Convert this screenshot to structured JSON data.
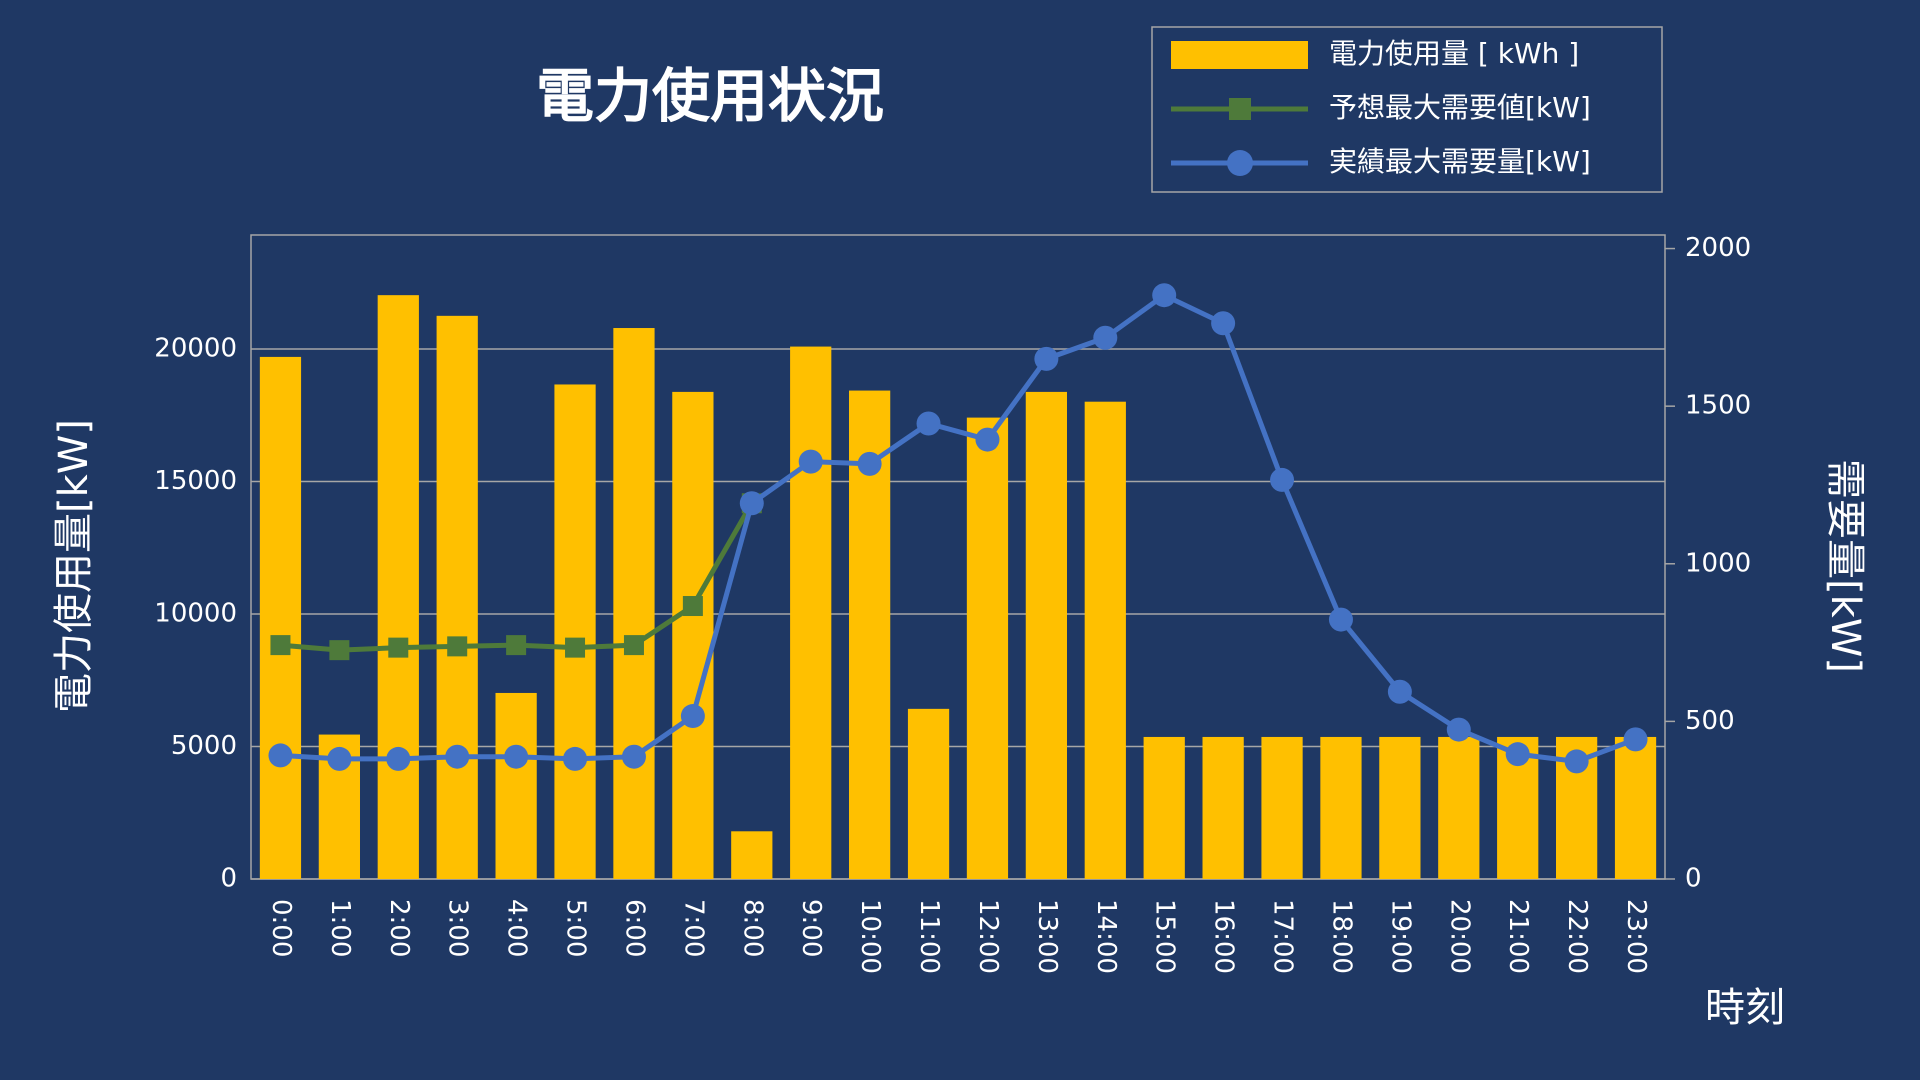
{
  "chart_data": {
    "type": "bar_line",
    "title": "電力使用状況",
    "y_label": "電力使用量[kW]",
    "y2_label": "需要量[kW]",
    "x_label": "時刻",
    "categories": [
      "0:00",
      "1:00",
      "2:00",
      "3:00",
      "4:00",
      "5:00",
      "6:00",
      "7:00",
      "8:00",
      "9:00",
      "10:00",
      "11:00",
      "12:00",
      "13:00",
      "14:00",
      "15:00",
      "16:00",
      "17:00",
      "18:00",
      "19:00",
      "20:00",
      "21:00",
      "22:00",
      "23:00"
    ],
    "series": [
      {
        "name": "電力使用量 [ kWh ]",
        "type": "bar",
        "color": "#ffc000",
        "values": [
          19700,
          5450,
          22030,
          21250,
          7020,
          18660,
          20790,
          18380,
          1800,
          20090,
          18430,
          6420,
          17410,
          18380,
          18010,
          5360,
          5360,
          5360,
          5360,
          5360,
          5360,
          5360,
          5360,
          5360
        ]
      },
      {
        "name": "予想最大需要値[kW]",
        "type": "line",
        "marker": "square",
        "axis": "y2",
        "color": "#4e7a3a",
        "values": [
          742,
          726,
          734,
          738,
          742,
          734,
          742,
          866,
          1192,
          null,
          null,
          null,
          null,
          null,
          null,
          null,
          null,
          null,
          null,
          null,
          null,
          null,
          null,
          null
        ]
      },
      {
        "name": "実績最大需要量[kW]",
        "type": "line",
        "marker": "circle",
        "axis": "y2",
        "color": "#4472c4",
        "values": [
          392,
          381,
          381,
          388,
          388,
          381,
          388,
          517,
          1192,
          1324,
          1317,
          1445,
          1394,
          1650,
          1717,
          1852,
          1763,
          1266,
          823,
          594,
          474,
          396,
          373,
          443
        ]
      }
    ],
    "ylim": [
      0,
      24300
    ],
    "yticks": [
      0,
      5000,
      10000,
      15000,
      20000
    ],
    "y2lim": [
      0,
      2043
    ],
    "y2ticks": [
      0,
      500,
      1000,
      1500,
      2000
    ],
    "grid": true,
    "legend": "top-right"
  }
}
